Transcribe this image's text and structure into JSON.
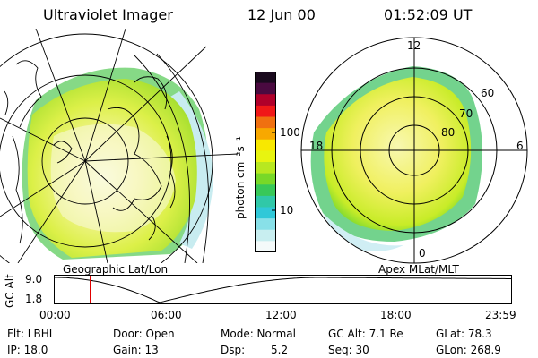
{
  "header": {
    "title": "Ultraviolet Imager",
    "date": "12 Jun 00",
    "time": "01:52:09 UT"
  },
  "colorbar": {
    "label": "photon cm⁻²s⁻¹",
    "ticks": [
      "100",
      "10"
    ],
    "colors": [
      "#1a0a1e",
      "#4a0a40",
      "#b0002a",
      "#f01818",
      "#f07010",
      "#f8a800",
      "#f8e800",
      "#e8f410",
      "#b8e820",
      "#78d828",
      "#38c858",
      "#30c8a8",
      "#30c8d8",
      "#88e0e8",
      "#c8eef0",
      "#f4fafa"
    ]
  },
  "left_map": {
    "label": "Geographic Lat/Lon"
  },
  "right_map": {
    "label": "Apex MLat/MLT",
    "mlt_labels": {
      "top": "12",
      "left": "18",
      "right": "6",
      "bottom": "0"
    },
    "lat_labels": [
      "60",
      "70",
      "80"
    ]
  },
  "timeline": {
    "axis_label": "GC Alt",
    "y_ticks": [
      "9.0",
      "1.8"
    ],
    "x_ticks": [
      "00:00",
      "06:00",
      "12:00",
      "18:00",
      "23:59"
    ],
    "marker_time": "01:52",
    "marker_color": "#e00000"
  },
  "info": {
    "filter": "Flt: LBHL",
    "ip": "IP: 18.0",
    "door": "Door: Open",
    "gain": "Gain: 13",
    "mode": "Mode: Normal",
    "dsp_label": "Dsp:",
    "dsp_value": "5.2",
    "gc_alt": "GC Alt: 7.1 Re",
    "seq": "Seq: 30",
    "glat": "GLat: 78.3",
    "glon": "GLon: 268.9"
  }
}
